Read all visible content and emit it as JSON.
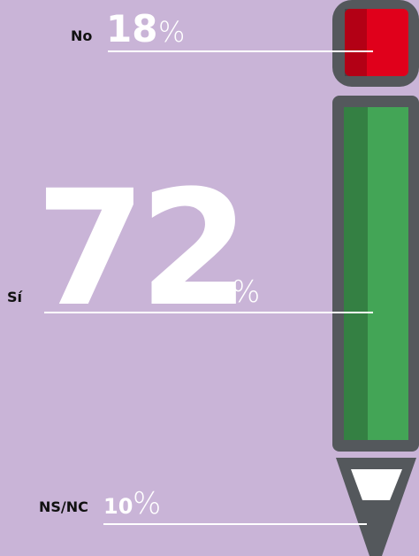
{
  "chart_data": {
    "type": "pencil",
    "categories": [
      "No",
      "Sí",
      "NS/NC"
    ],
    "values": [
      18,
      72,
      10
    ],
    "unit": "%",
    "colors": [
      "#e0001b",
      "#43a556",
      "#ffffff"
    ]
  }
}
